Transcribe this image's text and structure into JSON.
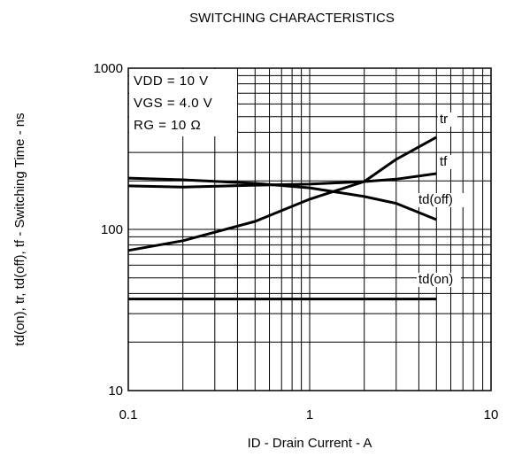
{
  "chart_data": {
    "type": "line",
    "title": "SWITCHING CHARACTERISTICS",
    "xlabel": "ID - Drain Current - A",
    "ylabel": "td(on), tr, td(off), tf - Switching Time - ns",
    "log_x": true,
    "log_y": true,
    "grid": true,
    "xlim": [
      0.1,
      10
    ],
    "xticks": [
      0.1,
      1,
      10
    ],
    "ylim": [
      10,
      1000
    ],
    "yticks": [
      10,
      100,
      1000
    ],
    "annotations": [
      "VDD = 10 V",
      "VGS = 4.0 V",
      "RG = 10 Ω"
    ],
    "x": [
      0.1,
      0.2,
      0.5,
      1,
      2,
      3,
      5
    ],
    "series": [
      {
        "name": "tr",
        "color": "#000000",
        "values": [
          74,
          85,
          112,
          154,
          198,
          272,
          373
        ]
      },
      {
        "name": "tf",
        "color": "#000000",
        "values": [
          186,
          183,
          188,
          191,
          198,
          205,
          222
        ]
      },
      {
        "name": "td(off)",
        "color": "#000000",
        "values": [
          208,
          203,
          193,
          181,
          160,
          145,
          115
        ]
      },
      {
        "name": "td(on)",
        "color": "#000000",
        "values": [
          37,
          37,
          37,
          37,
          37,
          37,
          37
        ]
      }
    ]
  }
}
